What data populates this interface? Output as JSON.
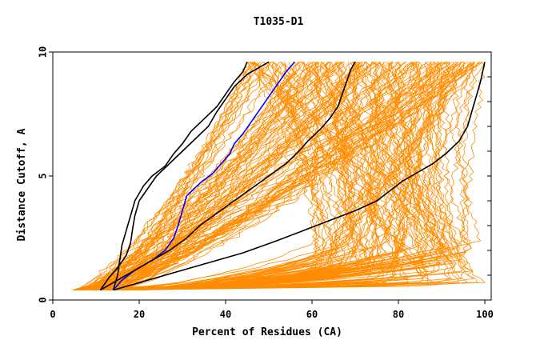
{
  "chart_data": {
    "type": "line",
    "title": "T1035-D1",
    "xlabel": "Percent of Residues (CA)",
    "ylabel": "Distance Cutoff, A",
    "xlim": [
      0,
      100
    ],
    "ylim": [
      0,
      10
    ],
    "x_ticks": [
      0,
      20,
      40,
      60,
      80,
      100
    ],
    "y_ticks": [
      0,
      5,
      10
    ],
    "grid": false,
    "colors": {
      "background_models": "#ff8c00",
      "highlight_black": "#000000",
      "highlight_blue": "#0000ff"
    },
    "series": [
      {
        "color": "black",
        "points": [
          [
            14,
            0.4
          ],
          [
            15,
            1.0
          ],
          [
            15.5,
            1.6
          ],
          [
            16,
            2.2
          ],
          [
            17,
            2.8
          ],
          [
            18,
            3.4
          ],
          [
            19,
            4.0
          ],
          [
            21,
            4.6
          ],
          [
            23,
            5.0
          ],
          [
            26,
            5.4
          ],
          [
            28,
            5.9
          ],
          [
            30,
            6.3
          ],
          [
            32,
            6.8
          ],
          [
            35,
            7.3
          ],
          [
            38,
            7.8
          ],
          [
            40,
            8.3
          ],
          [
            42,
            8.8
          ],
          [
            44,
            9.2
          ],
          [
            45,
            9.6
          ]
        ]
      },
      {
        "color": "black",
        "points": [
          [
            11,
            0.4
          ],
          [
            13,
            0.9
          ],
          [
            15,
            1.3
          ],
          [
            17,
            1.8
          ],
          [
            18,
            2.3
          ],
          [
            18.5,
            2.9
          ],
          [
            19,
            3.4
          ],
          [
            20,
            4.0
          ],
          [
            22,
            4.5
          ],
          [
            24,
            5.0
          ],
          [
            27,
            5.5
          ],
          [
            30,
            6.0
          ],
          [
            33,
            6.5
          ],
          [
            36,
            7.0
          ],
          [
            38,
            7.6
          ],
          [
            40,
            8.1
          ],
          [
            42,
            8.6
          ],
          [
            45,
            9.1
          ],
          [
            50,
            9.6
          ]
        ]
      },
      {
        "color": "blue",
        "points": [
          [
            14,
            0.4
          ],
          [
            16,
            0.8
          ],
          [
            19,
            1.2
          ],
          [
            23,
            1.6
          ],
          [
            26,
            2.0
          ],
          [
            28,
            2.5
          ],
          [
            29,
            3.0
          ],
          [
            30,
            3.6
          ],
          [
            31,
            4.2
          ],
          [
            34,
            4.7
          ],
          [
            37,
            5.1
          ],
          [
            39,
            5.5
          ],
          [
            41,
            5.9
          ],
          [
            42,
            6.3
          ],
          [
            44,
            6.7
          ],
          [
            46,
            7.2
          ],
          [
            48,
            7.7
          ],
          [
            50,
            8.2
          ],
          [
            52,
            8.7
          ],
          [
            54,
            9.2
          ],
          [
            56,
            9.6
          ]
        ]
      },
      {
        "color": "black",
        "points": [
          [
            11,
            0.4
          ],
          [
            15,
            0.8
          ],
          [
            19,
            1.2
          ],
          [
            23,
            1.6
          ],
          [
            27,
            2.0
          ],
          [
            31,
            2.5
          ],
          [
            34,
            3.0
          ],
          [
            38,
            3.5
          ],
          [
            42,
            4.0
          ],
          [
            46,
            4.5
          ],
          [
            50,
            5.0
          ],
          [
            54,
            5.5
          ],
          [
            57,
            6.0
          ],
          [
            59,
            6.4
          ],
          [
            62,
            6.9
          ],
          [
            64,
            7.3
          ],
          [
            66,
            7.8
          ],
          [
            67,
            8.3
          ],
          [
            68,
            8.8
          ],
          [
            69,
            9.3
          ],
          [
            70,
            9.6
          ]
        ]
      },
      {
        "color": "black",
        "points": [
          [
            14,
            0.4
          ],
          [
            20,
            0.7
          ],
          [
            28,
            1.1
          ],
          [
            36,
            1.5
          ],
          [
            44,
            1.9
          ],
          [
            52,
            2.4
          ],
          [
            58,
            2.8
          ],
          [
            64,
            3.2
          ],
          [
            70,
            3.6
          ],
          [
            75,
            4.0
          ],
          [
            78,
            4.4
          ],
          [
            81,
            4.8
          ],
          [
            84,
            5.1
          ],
          [
            88,
            5.5
          ],
          [
            91,
            5.9
          ],
          [
            94,
            6.4
          ],
          [
            96,
            7.0
          ],
          [
            97,
            7.6
          ],
          [
            98,
            8.2
          ],
          [
            99,
            8.8
          ],
          [
            100,
            9.6
          ]
        ]
      }
    ]
  }
}
